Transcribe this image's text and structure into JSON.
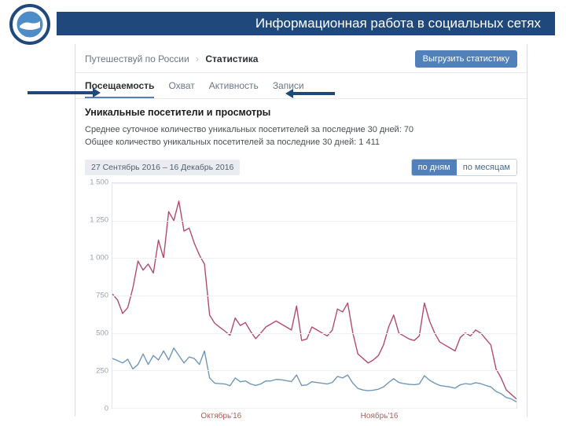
{
  "header": {
    "title": "Информационная работа в социальных сетях"
  },
  "crumbs": {
    "a": "Путешествуй по России",
    "b": "Статистика"
  },
  "buttons": {
    "export": "Выгрузить статистику"
  },
  "tabs": [
    "Посещаемость",
    "Охват",
    "Активность",
    "Записи"
  ],
  "activeTab": 0,
  "section": {
    "title": "Уникальные посетители и просмотры",
    "line1": "Среднее суточное количество уникальных посетителей за последние 30 дней: 70",
    "line2": "Общее количество уникальных посетителей за последние 30 дней: 1 411"
  },
  "range": "27 Сентябрь 2016 – 16 Декабрь 2016",
  "toggle": {
    "day": "по дням",
    "month": "по месяцам",
    "active": "day"
  },
  "chart": {
    "type": "line",
    "ylim": [
      0,
      1500
    ],
    "yticks": [
      0,
      250,
      500,
      750,
      1000,
      1250,
      1500
    ],
    "xticks": [
      {
        "pos": 0.27,
        "label": "Октябрь'16"
      },
      {
        "pos": 0.66,
        "label": "Ноябрь'16"
      }
    ],
    "grid_color": "#eef0f3",
    "border_color": "#e2e6ea",
    "background_color": "#ffffff",
    "tick_fontsize": 9.5,
    "tick_color": "#9aa2ad",
    "xlabel_color": "#a6635f",
    "series": [
      {
        "name": "views",
        "color": "#b24a6f",
        "width": 1.4,
        "y": [
          760,
          720,
          630,
          670,
          800,
          980,
          920,
          960,
          900,
          1120,
          1000,
          1310,
          1250,
          1380,
          1180,
          1200,
          1100,
          1020,
          960,
          620,
          565,
          538,
          512,
          485,
          600,
          550,
          570,
          512,
          462,
          500,
          540,
          560,
          580,
          560,
          540,
          520,
          680,
          450,
          460,
          540,
          520,
          500,
          480,
          520,
          660,
          640,
          700,
          500,
          360,
          330,
          300,
          320,
          350,
          420,
          540,
          620,
          500,
          480,
          460,
          450,
          480,
          700,
          580,
          500,
          440,
          420,
          400,
          380,
          470,
          500,
          480,
          520,
          500,
          460,
          420,
          260,
          200,
          120,
          90,
          60
        ]
      },
      {
        "name": "visitors",
        "color": "#6f97b8",
        "width": 1.4,
        "y": [
          330,
          315,
          300,
          325,
          260,
          290,
          360,
          290,
          350,
          320,
          380,
          320,
          400,
          350,
          300,
          340,
          330,
          290,
          380,
          200,
          165,
          162,
          160,
          148,
          200,
          175,
          180,
          160,
          150,
          160,
          180,
          180,
          190,
          188,
          182,
          176,
          220,
          150,
          153,
          175,
          170,
          165,
          160,
          170,
          210,
          200,
          220,
          165,
          130,
          120,
          115,
          118,
          125,
          140,
          170,
          195,
          170,
          162,
          158,
          155,
          160,
          215,
          185,
          165,
          150,
          145,
          140,
          132,
          154,
          162,
          158,
          168,
          162,
          150,
          140,
          110,
          95,
          70,
          60,
          40
        ]
      }
    ]
  }
}
